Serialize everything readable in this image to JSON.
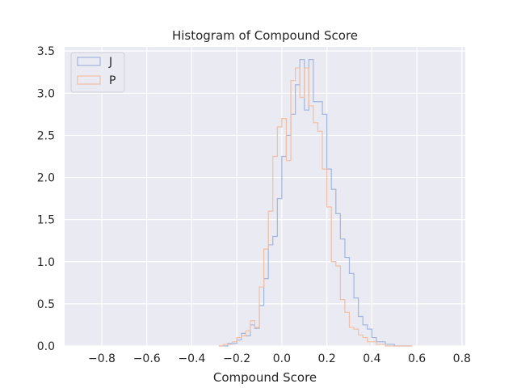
{
  "chart_data": {
    "type": "histogram",
    "title": "Histogram of Compound Score",
    "xlabel": "Compound Score",
    "ylabel": "",
    "xlim": [
      -0.965,
      0.815
    ],
    "ylim": [
      0,
      3.55
    ],
    "xticks": [
      -0.8,
      -0.6,
      -0.4,
      -0.2,
      0.0,
      0.2,
      0.4,
      0.6,
      0.8
    ],
    "xtick_labels": [
      "−0.8",
      "−0.6",
      "−0.4",
      "−0.2",
      "0.0",
      "0.2",
      "0.4",
      "0.6",
      "0.8"
    ],
    "yticks": [
      0.0,
      0.5,
      1.0,
      1.5,
      2.0,
      2.5,
      3.0,
      3.5
    ],
    "ytick_labels": [
      "0.0",
      "0.5",
      "1.0",
      "1.5",
      "2.0",
      "2.5",
      "3.0",
      "3.5"
    ],
    "grid": true,
    "legend_position": "top-left",
    "background": "#eaeaf2",
    "histtype": "step",
    "bin_start": -0.28,
    "bin_width": 0.02,
    "series": [
      {
        "name": "J",
        "color": "#a3b6dd",
        "density": [
          0.0,
          0.0,
          0.03,
          0.03,
          0.07,
          0.15,
          0.12,
          0.25,
          0.21,
          0.48,
          0.8,
          1.2,
          1.3,
          1.75,
          2.25,
          2.5,
          2.75,
          3.1,
          3.4,
          2.8,
          3.4,
          2.9,
          2.9,
          2.75,
          2.1,
          1.86,
          1.57,
          1.27,
          1.05,
          0.86,
          0.57,
          0.35,
          0.25,
          0.2,
          0.1,
          0.05,
          0.05,
          0.02,
          0.02,
          0.0,
          0.0,
          0.0,
          0.0
        ]
      },
      {
        "name": "P",
        "color": "#f0bfa6",
        "density": [
          0.0,
          0.02,
          0.02,
          0.05,
          0.1,
          0.12,
          0.18,
          0.3,
          0.22,
          0.7,
          1.15,
          1.6,
          2.25,
          2.6,
          2.7,
          2.2,
          3.15,
          3.3,
          2.95,
          3.3,
          2.85,
          2.65,
          2.55,
          2.1,
          1.65,
          1.0,
          0.95,
          0.55,
          0.4,
          0.22,
          0.2,
          0.13,
          0.1,
          0.05,
          0.05,
          0.02,
          0.02,
          0.0,
          0.0,
          0.0,
          0.0,
          0.0,
          0.0
        ]
      }
    ]
  }
}
